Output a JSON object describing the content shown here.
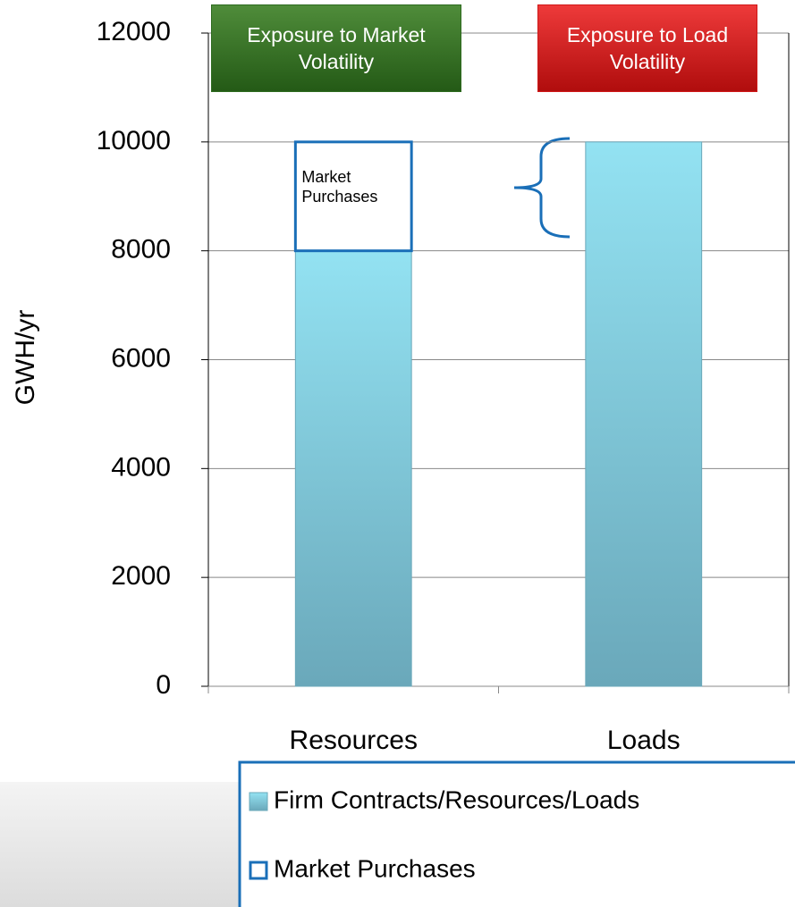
{
  "chart_data": {
    "type": "stacked_bar",
    "y_label": "GWH/yr",
    "categories": [
      "Resources",
      "Loads"
    ],
    "series": [
      {
        "name": "Firm Contracts/Resources/Loads",
        "color": "#7fcbe0",
        "values": [
          8000,
          10000
        ]
      },
      {
        "name": "Market Purchases",
        "color": "#1a6fb8",
        "outline": true,
        "values": [
          2000,
          0
        ]
      }
    ],
    "ylim": [
      0,
      12000
    ],
    "yticks": [
      0,
      2000,
      4000,
      6000,
      8000,
      10000,
      12000
    ],
    "grid": true,
    "annotations": [
      {
        "text": "Exposure to Market Volatility",
        "color": "#2e6b1f"
      },
      {
        "text": "Exposure to Load Volatility",
        "color": "#d01818"
      },
      {
        "text": "Market Purchases"
      }
    ]
  }
}
